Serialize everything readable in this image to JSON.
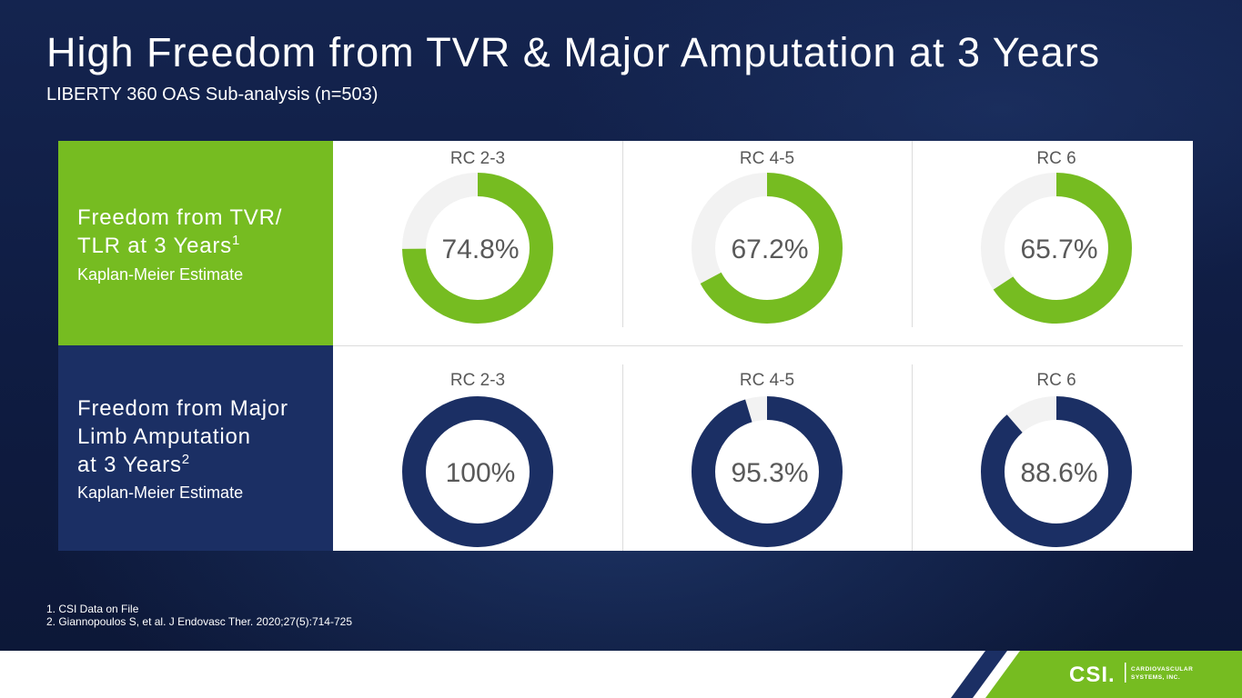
{
  "title": "High Freedom from TVR & Major Amputation at 3 Years",
  "subtitle": "LIBERTY 360 OAS Sub-analysis (n=503)",
  "rows": [
    {
      "heading_lines": [
        "Freedom from TVR/",
        "TLR at 3 Years"
      ],
      "superscript": "1",
      "subheading": "Kaplan-Meier Estimate",
      "color": "#76bc21"
    },
    {
      "heading_lines": [
        "Freedom from Major",
        "Limb Amputation",
        "at 3 Years"
      ],
      "superscript": "2",
      "subheading": "Kaplan-Meier Estimate",
      "color": "#1b2f64"
    }
  ],
  "chart_data": [
    {
      "type": "pie",
      "variant": "donut",
      "title": "Freedom from TVR/TLR at 3 Years — Kaplan-Meier Estimate",
      "categories": [
        "RC 2-3",
        "RC 4-5",
        "RC 6"
      ],
      "values": [
        74.8,
        67.2,
        65.7
      ],
      "value_labels": [
        "74.8%",
        "67.2%",
        "65.7%"
      ],
      "unit": "%",
      "max": 100,
      "color": "#76bc21",
      "remainder_color": "#f2f2f2"
    },
    {
      "type": "pie",
      "variant": "donut",
      "title": "Freedom from Major Limb Amputation at 3 Years — Kaplan-Meier Estimate",
      "categories": [
        "RC 2-3",
        "RC 4-5",
        "RC 6"
      ],
      "values": [
        100,
        95.3,
        88.6
      ],
      "value_labels": [
        "100%",
        "95.3%",
        "88.6%"
      ],
      "unit": "%",
      "max": 100,
      "color": "#1b2f64",
      "remainder_color": "#f2f2f2"
    }
  ],
  "label_color": "#595959",
  "footnotes": [
    "1. CSI Data on File",
    "2. Giannopoulos S, et al. J Endovasc Ther. 2020;27(5):714-725"
  ],
  "logo": {
    "wordmark": "CSI.",
    "tagline_lines": [
      "CARDIOVASCULAR",
      "SYSTEMS, INC."
    ],
    "green": "#76bc21",
    "blue": "#1b2f64"
  }
}
